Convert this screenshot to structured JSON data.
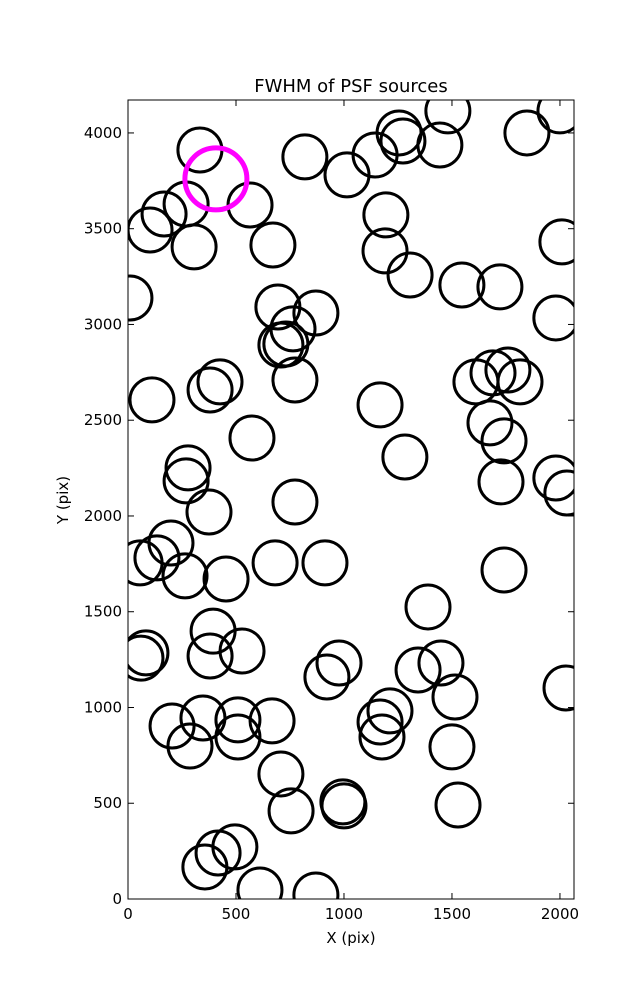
{
  "chart_data": {
    "type": "scatter",
    "title": "FWHM of PSF sources",
    "xlabel": "X (pix)",
    "ylabel": "Y (pix)",
    "xlim": [
      0,
      2065
    ],
    "ylim": [
      0,
      4172
    ],
    "xticks": [
      0,
      500,
      1000,
      1500,
      2000
    ],
    "yticks": [
      0,
      500,
      1000,
      1500,
      2000,
      2500,
      3000,
      3500,
      4000
    ],
    "series": [
      {
        "color": "#000000",
        "marker": "open-circle",
        "x": [
          333,
          1481,
          1255,
          1273,
          1444,
          1847,
          2000,
          819,
          1014,
          1144,
          1194,
          1190,
          1306,
          1546,
          1722,
          2009,
          1981,
          102,
          167,
          269,
          306,
          565,
          671,
          9,
          694,
          870,
          764,
          731,
          708,
          773,
          380,
          426,
          111,
          574,
          1167,
          1282,
          1611,
          1690,
          1759,
          1815,
          1676,
          1741,
          1727,
          1981,
          2032,
          278,
          269,
          375,
          773,
          199,
          56,
          134,
          264,
          454,
          681,
          912,
          1741,
          1389,
          83,
          60,
          394,
          380,
          528,
          977,
          921,
          1343,
          1449,
          1514,
          2028,
          204,
          347,
          287,
          509,
          509,
          667,
          1213,
          1167,
          1176,
          1500,
          708,
          755,
          995,
          1000,
          1528,
          495,
          417,
          356,
          611,
          870
        ],
        "values": [
          3911,
          4115,
          4000,
          3958,
          3937,
          4000,
          4115,
          3875,
          3781,
          3885,
          3572,
          3384,
          3258,
          3206,
          3196,
          3431,
          3034,
          3493,
          3577,
          3629,
          3405,
          3624,
          3415,
          3138,
          3091,
          3060,
          2977,
          2898,
          2893,
          2710,
          2658,
          2700,
          2606,
          2407,
          2580,
          2308,
          2700,
          2747,
          2762,
          2700,
          2486,
          2392,
          2178,
          2198,
          2120,
          2251,
          2183,
          2021,
          2073,
          1859,
          1755,
          1781,
          1687,
          1671,
          1755,
          1755,
          1718,
          1525,
          1285,
          1258,
          1399,
          1269,
          1295,
          1232,
          1159,
          1196,
          1232,
          1055,
          1102,
          903,
          945,
          799,
          935,
          846,
          930,
          982,
          924,
          846,
          794,
          653,
          460,
          507,
          486,
          491,
          272,
          240,
          167,
          47,
          21
        ]
      },
      {
        "color": "#ff00ff",
        "marker": "open-circle",
        "x": [
          407
        ],
        "values": [
          3760
        ]
      }
    ]
  }
}
